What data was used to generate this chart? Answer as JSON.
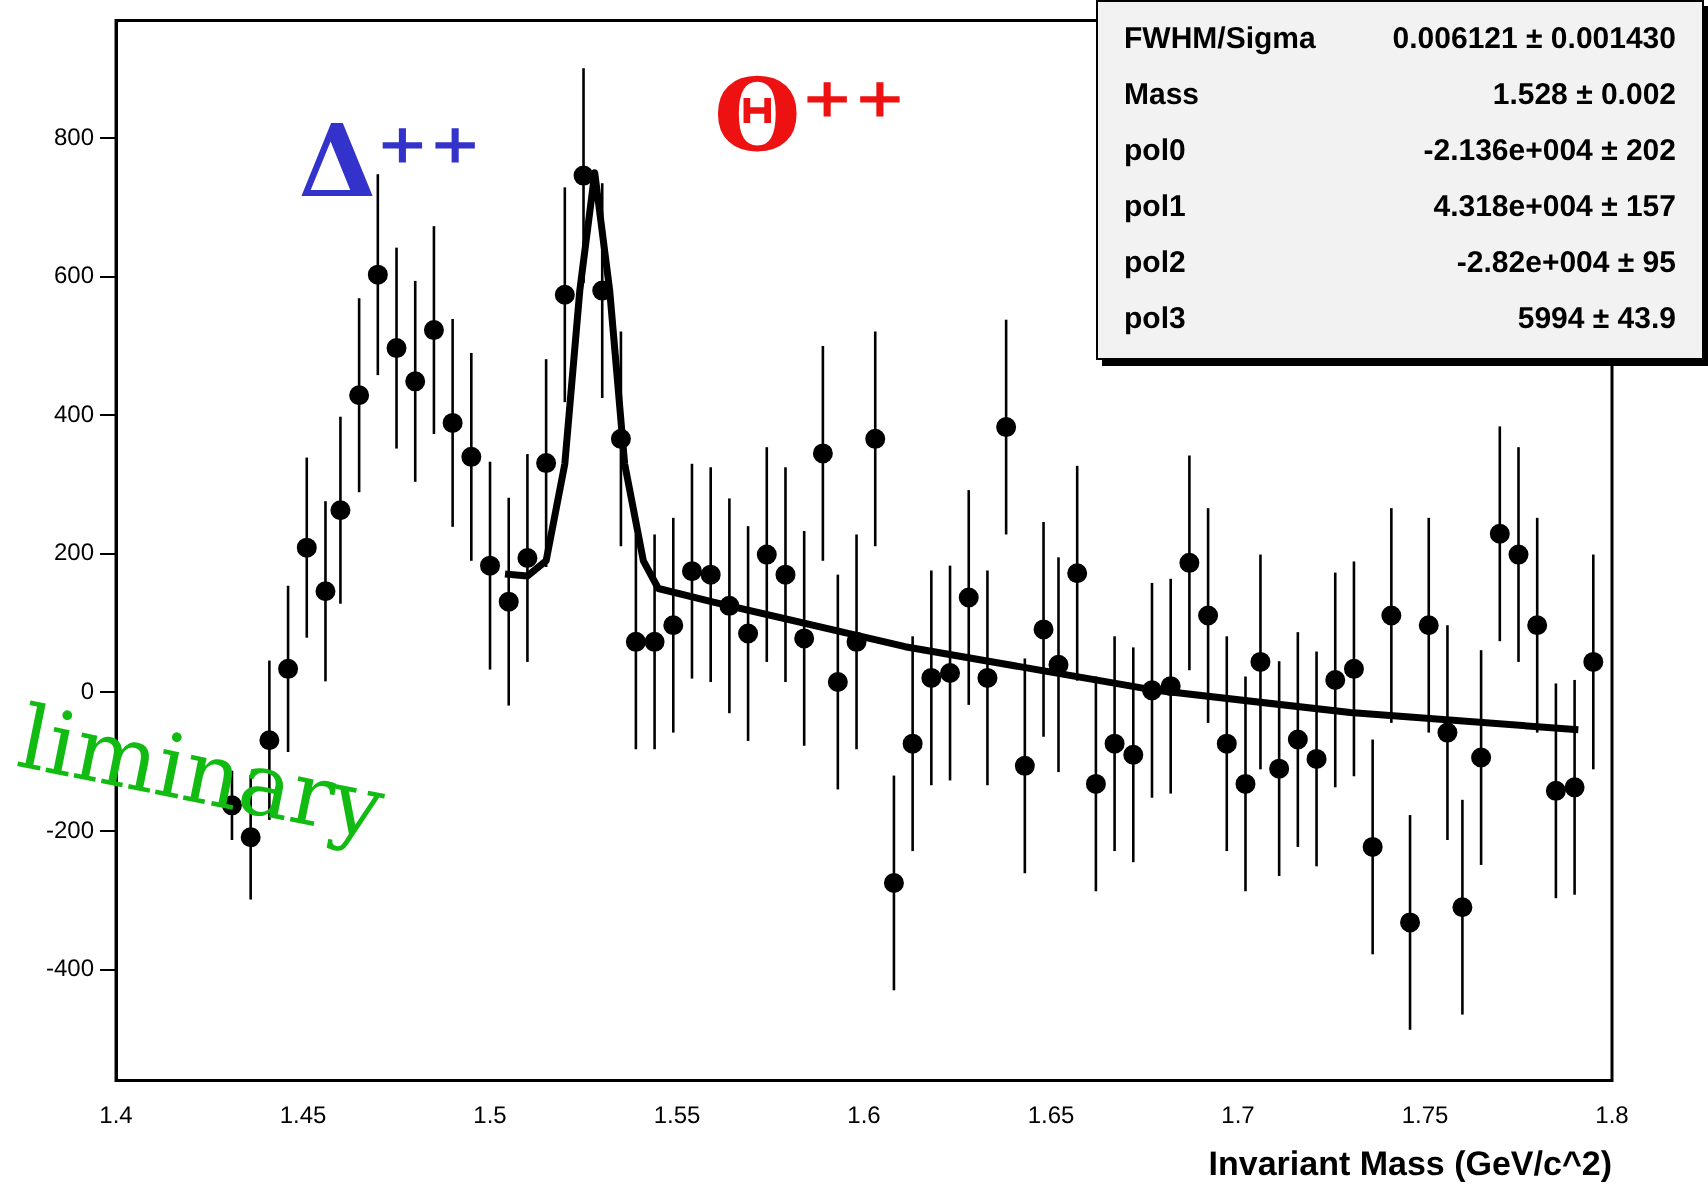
{
  "chart_data": {
    "type": "scatter",
    "xlabel": "Invariant Mass (GeV/c^2)",
    "xlim": [
      1.4,
      1.8
    ],
    "xticks": [
      1.4,
      1.45,
      1.5,
      1.55,
      1.6,
      1.65,
      1.7,
      1.75,
      1.8
    ],
    "ylim": [
      -560,
      970
    ],
    "yticks": [
      -400,
      -200,
      0,
      200,
      400,
      600,
      800
    ],
    "grid": false,
    "marker": "circle",
    "legend": false,
    "series": [
      {
        "type": "scatter",
        "color": "#000000",
        "x": [
          1.431,
          1.436,
          1.441,
          1.446,
          1.451,
          1.456,
          1.46,
          1.465,
          1.47,
          1.475,
          1.48,
          1.485,
          1.49,
          1.495,
          1.5,
          1.505,
          1.51,
          1.515,
          1.52,
          1.525,
          1.53,
          1.535,
          1.539,
          1.544,
          1.549,
          1.554,
          1.559,
          1.564,
          1.569,
          1.574,
          1.579,
          1.584,
          1.589,
          1.593,
          1.598,
          1.603,
          1.608,
          1.613,
          1.618,
          1.623,
          1.628,
          1.633,
          1.638,
          1.643,
          1.648,
          1.652,
          1.657,
          1.662,
          1.667,
          1.672,
          1.677,
          1.682,
          1.687,
          1.692,
          1.697,
          1.702,
          1.706,
          1.711,
          1.716,
          1.721,
          1.726,
          1.731,
          1.736,
          1.741,
          1.746,
          1.751,
          1.756,
          1.76,
          1.765,
          1.77,
          1.775,
          1.78,
          1.785,
          1.79,
          1.795
        ],
        "values": [
          -163,
          -209,
          -69,
          34,
          209,
          146,
          263,
          429,
          603,
          497,
          449,
          523,
          389,
          340,
          183,
          131,
          194,
          331,
          574,
          746,
          580,
          366,
          73,
          73,
          97,
          175,
          170,
          125,
          85,
          199,
          170,
          78,
          345,
          15,
          73,
          366,
          -275,
          -74,
          21,
          28,
          137,
          21,
          383,
          -106,
          91,
          40,
          172,
          -132,
          -74,
          -90,
          3,
          9,
          187,
          111,
          -74,
          -132,
          44,
          -110,
          -68,
          -96,
          18,
          34,
          -223,
          111,
          -332,
          97,
          -58,
          -310,
          -94,
          229,
          199,
          97,
          -142,
          -137,
          44
        ],
        "errors": [
          50,
          90,
          115,
          120,
          130,
          130,
          135,
          140,
          145,
          145,
          145,
          150,
          150,
          150,
          150,
          150,
          150,
          150,
          155,
          155,
          155,
          155,
          155,
          155,
          155,
          155,
          155,
          155,
          155,
          155,
          155,
          155,
          155,
          155,
          155,
          155,
          155,
          155,
          155,
          155,
          155,
          155,
          155,
          155,
          155,
          155,
          155,
          155,
          155,
          155,
          155,
          155,
          155,
          155,
          155,
          155,
          155,
          155,
          155,
          155,
          155,
          155,
          155,
          155,
          155,
          155,
          155,
          155,
          155,
          155,
          155,
          155,
          155,
          155,
          155
        ]
      },
      {
        "type": "line",
        "color": "#000000",
        "marker": "none",
        "x": [
          1.504,
          1.51,
          1.515,
          1.52,
          1.524,
          1.528,
          1.532,
          1.536,
          1.541,
          1.545,
          1.56,
          1.611,
          1.678,
          1.73,
          1.791
        ],
        "values": [
          171,
          168,
          190,
          330,
          580,
          750,
          580,
          330,
          190,
          150,
          130,
          66,
          3,
          -29,
          -54
        ]
      }
    ],
    "annotations": [
      "Δ⁺⁺",
      "Θ⁺⁺",
      "FWHM/Sigma",
      "0.006121 ± 0.001430",
      "Mass",
      "1.528 ± 0.002",
      "pol0",
      "-2.136e+004 ± 202",
      "pol1",
      "4.318e+004 ± 157",
      "pol2",
      "-2.82e+004 ± 95",
      "pol3",
      "5994 ± 43.9",
      "liminary"
    ]
  }
}
